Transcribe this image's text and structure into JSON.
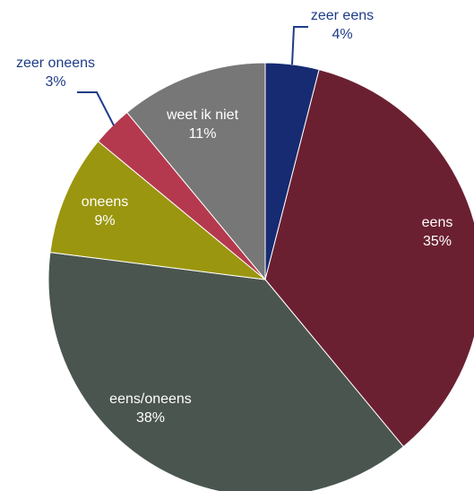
{
  "chart_data": {
    "type": "pie",
    "title": "",
    "slices": [
      {
        "label": "zeer eens",
        "value": 4,
        "value_label": "4%",
        "color": "#172b72",
        "label_color": "#1f3c88",
        "label_placement": "outside"
      },
      {
        "label": "eens",
        "value": 35,
        "value_label": "35%",
        "color": "#6b2031",
        "label_color": "#ffffff",
        "label_placement": "inside"
      },
      {
        "label": "eens/oneens",
        "value": 38,
        "value_label": "38%",
        "color": "#4a5550",
        "label_color": "#ffffff",
        "label_placement": "inside"
      },
      {
        "label": "oneens",
        "value": 9,
        "value_label": "9%",
        "color": "#9b960f",
        "label_color": "#ffffff",
        "label_placement": "inside"
      },
      {
        "label": "zeer oneens",
        "value": 3,
        "value_label": "3%",
        "color": "#b5394e",
        "label_color": "#1f3c88",
        "label_placement": "outside"
      },
      {
        "label": "weet ik niet",
        "value": 11,
        "value_label": "11%",
        "color": "#777777",
        "label_color": "#ffffff",
        "label_placement": "inside"
      }
    ],
    "start_angle_deg": 0,
    "direction": "clockwise",
    "legend": "none"
  }
}
